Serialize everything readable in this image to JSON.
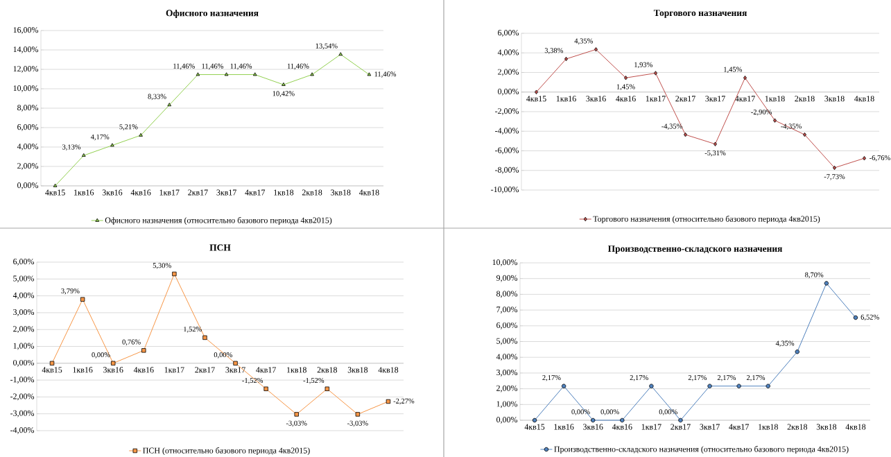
{
  "chart_data": [
    {
      "type": "line",
      "title": "Офисного назначения",
      "categories": [
        "4кв15",
        "1кв16",
        "3кв16",
        "4кв16",
        "1кв17",
        "2кв17",
        "3кв17",
        "4кв17",
        "1кв18",
        "2кв18",
        "3кв18",
        "4кв18"
      ],
      "series": [
        {
          "name": "Офисного назначения  (относительно базового периода 4кв2015)",
          "color": "#92d050",
          "values": [
            0,
            3.13,
            4.17,
            5.21,
            8.33,
            11.46,
            11.46,
            11.46,
            10.42,
            11.46,
            13.54,
            11.46
          ],
          "value_labels": [
            null,
            "3,13%",
            "4,17%",
            "5,21%",
            "8,33%",
            "11,46%",
            "11,46%",
            "11,46%",
            "10,42%",
            "11,46%",
            "13,54%",
            "11,46%"
          ]
        }
      ],
      "ylim": [
        0,
        16
      ],
      "yticks": [
        {
          "value": 0,
          "label": "0,00%"
        },
        {
          "value": 2,
          "label": "2,00%"
        },
        {
          "value": 4,
          "label": "4,00%"
        },
        {
          "value": 6,
          "label": "6,00%"
        },
        {
          "value": 8,
          "label": "8,00%"
        },
        {
          "value": 10,
          "label": "10,00%"
        },
        {
          "value": 12,
          "label": "12,00%"
        },
        {
          "value": 14,
          "label": "14,00%"
        },
        {
          "value": 16,
          "label": "16,00%"
        }
      ],
      "grid": "y",
      "legend": "bottom",
      "marker": "triangle"
    },
    {
      "type": "line",
      "title": "Торгового назначения",
      "categories": [
        "4кв15",
        "1кв16",
        "3кв16",
        "4кв16",
        "1кв17",
        "2кв17",
        "3кв17",
        "4кв17",
        "1кв18",
        "2кв18",
        "3кв18",
        "4кв18"
      ],
      "series": [
        {
          "name": "Торгового назначения  (относительно базового периода 4кв2015)",
          "color": "#c0504d",
          "values": [
            0,
            3.38,
            4.35,
            1.45,
            1.93,
            -4.35,
            -5.31,
            1.45,
            -2.9,
            -4.35,
            -7.73,
            -6.76
          ],
          "value_labels": [
            null,
            "3,38%",
            "4,35%",
            "1,45%",
            "1,93%",
            "-4,35%",
            "-5,31%",
            "1,45%",
            "-2,90%",
            "-4,35%",
            "-7,73%",
            "-6,76%"
          ]
        }
      ],
      "ylim": [
        -10,
        6
      ],
      "yticks": [
        {
          "value": -10,
          "label": "-10,00%"
        },
        {
          "value": -8,
          "label": "-8,00%"
        },
        {
          "value": -6,
          "label": "-6,00%"
        },
        {
          "value": -4,
          "label": "-4,00%"
        },
        {
          "value": -2,
          "label": "-2,00%"
        },
        {
          "value": 0,
          "label": "0,00%"
        },
        {
          "value": 2,
          "label": "2,00%"
        },
        {
          "value": 4,
          "label": "4,00%"
        },
        {
          "value": 6,
          "label": "6,00%"
        }
      ],
      "grid": "y",
      "legend": "bottom",
      "marker": "diamond"
    },
    {
      "type": "line",
      "title": "ПСН",
      "categories": [
        "4кв15",
        "1кв16",
        "3кв16",
        "4кв16",
        "1кв17",
        "2кв17",
        "3кв17",
        "4кв17",
        "1кв18",
        "2кв18",
        "3кв18",
        "4кв18"
      ],
      "series": [
        {
          "name": "ПСН (относительно базового периода 4кв2015)",
          "color": "#f79646",
          "values": [
            0,
            3.79,
            0,
            0.76,
            5.3,
            1.52,
            0,
            -1.52,
            -3.03,
            -1.52,
            -3.03,
            -2.27
          ],
          "value_labels": [
            null,
            "3,79%",
            "0,00%",
            "0,76%",
            "5,30%",
            "1,52%",
            "0,00%",
            "-1,52%",
            "-3,03%",
            "-1,52%",
            "-3,03%",
            "-2,27%"
          ]
        }
      ],
      "ylim": [
        -4,
        6
      ],
      "yticks": [
        {
          "value": -4,
          "label": "-4,00%"
        },
        {
          "value": -3,
          "label": "-3,00%"
        },
        {
          "value": -2,
          "label": "-2,00%"
        },
        {
          "value": -1,
          "label": "-1,00%"
        },
        {
          "value": 0,
          "label": "0,00%"
        },
        {
          "value": 1,
          "label": "1,00%"
        },
        {
          "value": 2,
          "label": "2,00%"
        },
        {
          "value": 3,
          "label": "3,00%"
        },
        {
          "value": 4,
          "label": "4,00%"
        },
        {
          "value": 5,
          "label": "5,00%"
        },
        {
          "value": 6,
          "label": "6,00%"
        }
      ],
      "grid": "y",
      "legend": "bottom",
      "marker": "square"
    },
    {
      "type": "line",
      "title": "Производственно-складского назначения",
      "categories": [
        "4кв15",
        "1кв16",
        "3кв16",
        "4кв16",
        "1кв17",
        "2кв17",
        "3кв17",
        "4кв17",
        "1кв18",
        "2кв18",
        "3кв18",
        "4кв18"
      ],
      "series": [
        {
          "name": "Производственно-складского назначения (относительно базового периода 4кв2015)",
          "color": "#4f81bd",
          "values": [
            0,
            2.17,
            0,
            0,
            2.17,
            0,
            2.17,
            2.17,
            2.17,
            4.35,
            8.7,
            6.52
          ],
          "value_labels": [
            null,
            "2,17%",
            "0,00%",
            "0,00%",
            "2,17%",
            "0,00%",
            "2,17%",
            "2,17%",
            "2,17%",
            "4,35%",
            "8,70%",
            "6,52%"
          ]
        }
      ],
      "ylim": [
        0,
        10
      ],
      "yticks": [
        {
          "value": 0,
          "label": "0,00%"
        },
        {
          "value": 1,
          "label": "1,00%"
        },
        {
          "value": 2,
          "label": "2,00%"
        },
        {
          "value": 3,
          "label": "3,00%"
        },
        {
          "value": 4,
          "label": "4,00%"
        },
        {
          "value": 5,
          "label": "5,00%"
        },
        {
          "value": 6,
          "label": "6,00%"
        },
        {
          "value": 7,
          "label": "7,00%"
        },
        {
          "value": 8,
          "label": "8,00%"
        },
        {
          "value": 9,
          "label": "9,00%"
        },
        {
          "value": 10,
          "label": "10,00%"
        }
      ],
      "grid": "y",
      "legend": "bottom",
      "marker": "circle"
    }
  ]
}
